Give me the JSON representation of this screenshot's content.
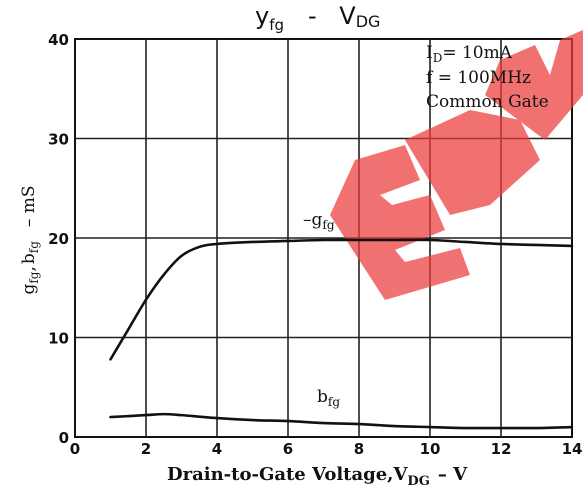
{
  "chart_data": {
    "type": "line",
    "title": "y",
    "title_sub": "fg",
    "title_sep": "-",
    "title_rhs": "V",
    "title_rhs_sub": "DG",
    "xlabel": "Drain-to-Gate Voltage,V",
    "xlabel_sub": "DG",
    "xlabel_unit": "– V",
    "ylabel": {
      "g": "g",
      "g_sub": "fg",
      "comma": ",",
      "b": "b",
      "b_sub": "fg",
      "unit": "– mS"
    },
    "xlim": [
      0,
      14
    ],
    "ylim": [
      0,
      40
    ],
    "x_ticks": [
      0,
      2,
      4,
      6,
      8,
      10,
      12,
      14
    ],
    "y_ticks": [
      0,
      10,
      20,
      30,
      40
    ],
    "grid": true,
    "annotations": {
      "line1": {
        "main": "I",
        "sub": "D",
        "rest": "= 10mA"
      },
      "line2": "f = 100MHz",
      "line3": "Common Gate"
    },
    "series": [
      {
        "name": "g",
        "name_sub": "fg",
        "name_prefix": "–",
        "x": [
          1,
          1.5,
          2,
          2.5,
          3,
          3.5,
          4,
          5,
          6,
          7,
          8,
          9,
          10,
          11,
          12,
          13,
          14
        ],
        "y": [
          7.8,
          10.8,
          13.8,
          16.3,
          18.2,
          19.1,
          19.4,
          19.6,
          19.7,
          19.8,
          19.8,
          19.8,
          19.8,
          19.6,
          19.4,
          19.3,
          19.2
        ]
      },
      {
        "name": "b",
        "name_sub": "fg",
        "x": [
          1,
          2,
          2.5,
          3,
          4,
          5,
          6,
          7,
          8,
          9,
          10,
          11,
          12,
          13,
          14
        ],
        "y": [
          2.0,
          2.2,
          2.3,
          2.2,
          1.9,
          1.7,
          1.6,
          1.4,
          1.3,
          1.1,
          1.0,
          0.9,
          0.9,
          0.9,
          1.0
        ]
      }
    ],
    "colors": {
      "line": "#111111",
      "grid": "#222222",
      "watermark": "#ec3b3b"
    }
  }
}
